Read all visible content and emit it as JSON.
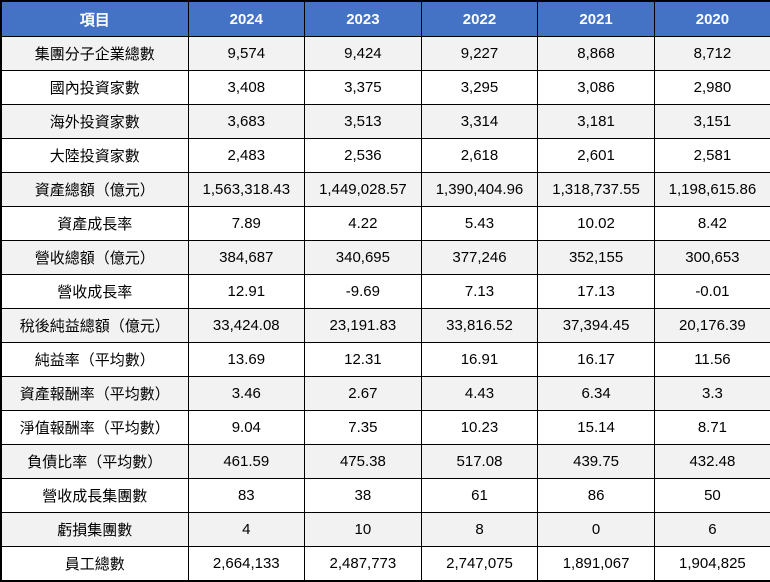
{
  "colors": {
    "header_bg": "#4472C4",
    "header_text": "#FFFFFF",
    "row_alt_bg": "#F2F2F2",
    "row_bg": "#FFFFFF",
    "border": "#000000"
  },
  "chart_data": {
    "type": "table",
    "columns": [
      "項目",
      "2024",
      "2023",
      "2022",
      "2021",
      "2020"
    ],
    "rows": [
      {
        "label": "集團分子企業總數",
        "values": [
          "9,574",
          "9,424",
          "9,227",
          "8,868",
          "8,712"
        ]
      },
      {
        "label": "國內投資家數",
        "values": [
          "3,408",
          "3,375",
          "3,295",
          "3,086",
          "2,980"
        ]
      },
      {
        "label": "海外投資家數",
        "values": [
          "3,683",
          "3,513",
          "3,314",
          "3,181",
          "3,151"
        ]
      },
      {
        "label": "大陸投資家數",
        "values": [
          "2,483",
          "2,536",
          "2,618",
          "2,601",
          "2,581"
        ]
      },
      {
        "label": "資產總額（億元）",
        "values": [
          "1,563,318.43",
          "1,449,028.57",
          "1,390,404.96",
          "1,318,737.55",
          "1,198,615.86"
        ]
      },
      {
        "label": "資產成長率",
        "values": [
          "7.89",
          "4.22",
          "5.43",
          "10.02",
          "8.42"
        ]
      },
      {
        "label": "營收總額（億元）",
        "values": [
          "384,687",
          "340,695",
          "377,246",
          "352,155",
          "300,653"
        ]
      },
      {
        "label": "營收成長率",
        "values": [
          "12.91",
          "-9.69",
          "7.13",
          "17.13",
          "-0.01"
        ]
      },
      {
        "label": "稅後純益總額（億元）",
        "values": [
          "33,424.08",
          "23,191.83",
          "33,816.52",
          "37,394.45",
          "20,176.39"
        ]
      },
      {
        "label": "純益率（平均數）",
        "values": [
          "13.69",
          "12.31",
          "16.91",
          "16.17",
          "11.56"
        ]
      },
      {
        "label": "資產報酬率（平均數）",
        "values": [
          "3.46",
          "2.67",
          "4.43",
          "6.34",
          "3.3"
        ]
      },
      {
        "label": "淨值報酬率（平均數）",
        "values": [
          "9.04",
          "7.35",
          "10.23",
          "15.14",
          "8.71"
        ]
      },
      {
        "label": "負債比率（平均數）",
        "values": [
          "461.59",
          "475.38",
          "517.08",
          "439.75",
          "432.48"
        ]
      },
      {
        "label": "營收成長集團數",
        "values": [
          "83",
          "38",
          "61",
          "86",
          "50"
        ]
      },
      {
        "label": "虧損集團數",
        "values": [
          "4",
          "10",
          "8",
          "0",
          "6"
        ]
      },
      {
        "label": "員工總數",
        "values": [
          "2,664,133",
          "2,487,773",
          "2,747,075",
          "1,891,067",
          "1,904,825"
        ]
      }
    ]
  }
}
